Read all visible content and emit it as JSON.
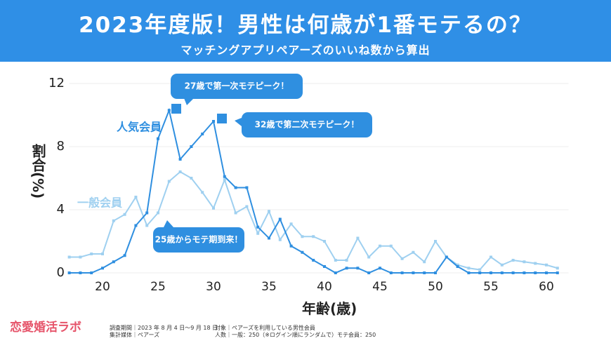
{
  "chart_data": {
    "type": "line",
    "title": "2023年度版！男性は何歳が1番モテるの？",
    "subtitle": "マッチングアプリペアーズのいいね数から算出",
    "x_label": "年齢(歳)",
    "y_label": "割合(%)",
    "x": [
      17,
      18,
      19,
      20,
      21,
      22,
      23,
      24,
      25,
      26,
      27,
      28,
      29,
      30,
      31,
      32,
      33,
      34,
      35,
      36,
      37,
      38,
      39,
      40,
      41,
      42,
      43,
      44,
      45,
      46,
      47,
      48,
      49,
      50,
      51,
      52,
      53,
      54,
      55,
      56,
      57,
      58,
      59,
      60,
      61
    ],
    "series": [
      {
        "name": "一般会員",
        "color": "#9fd0f0",
        "values": [
          1.0,
          1.0,
          1.2,
          1.2,
          3.3,
          3.7,
          4.8,
          3.0,
          3.8,
          5.8,
          6.4,
          6.0,
          5.1,
          4.1,
          5.9,
          3.8,
          4.2,
          2.5,
          3.9,
          2.1,
          3.1,
          2.3,
          2.3,
          2.0,
          0.8,
          0.8,
          2.2,
          1.0,
          1.7,
          1.7,
          0.9,
          1.3,
          0.7,
          2.0,
          1.0,
          0.5,
          0.3,
          0.2,
          1.0,
          0.5,
          0.8,
          0.7,
          0.6,
          0.5,
          0.3
        ]
      },
      {
        "name": "人気会員",
        "color": "#2f8fe0",
        "values": [
          0,
          0,
          0,
          0.3,
          0.7,
          1.1,
          3.0,
          3.8,
          8.5,
          10.3,
          7.2,
          8.0,
          8.8,
          9.6,
          6.1,
          5.4,
          5.4,
          2.9,
          2.2,
          3.4,
          1.7,
          1.3,
          0.8,
          0.4,
          0,
          0.3,
          0.3,
          0,
          0.3,
          0,
          0,
          0,
          0,
          0,
          1.0,
          0.4,
          0,
          0,
          0,
          0,
          0,
          0,
          0,
          0,
          0
        ]
      }
    ],
    "xlim": [
      17,
      62
    ],
    "ylim": [
      0,
      12
    ],
    "xticks": [
      20,
      25,
      30,
      35,
      40,
      45,
      50,
      55,
      60
    ],
    "yticks": [
      0,
      4,
      8,
      12
    ],
    "grid": true,
    "annotations": [
      "27歳で第一次モテピーク！",
      "32歳で第二次モテピーク！",
      "25歳からモテ期到来！"
    ]
  },
  "footer": {
    "logo": "恋愛婚活ラボ",
    "notes": [
      "調査期間｜2023 年 8 月 4 日～9 月 18 日",
      "集計媒体｜ペアーズ",
      "対象｜ペアーズを利用している男性会員",
      "人数｜一般：250（※ログイン順にランダムで）モテ会員：250"
    ]
  }
}
